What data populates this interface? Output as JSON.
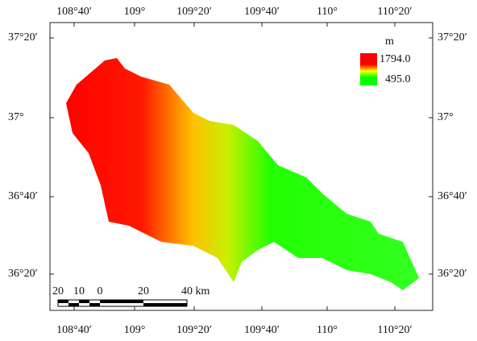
{
  "map": {
    "top_labels": [
      "108°40′",
      "109°",
      "109°20′",
      "109°40′",
      "110°",
      "110°20′"
    ],
    "bottom_labels": [
      "108°40′",
      "109°",
      "109°20′",
      "109°40′",
      "110°",
      "110°20′"
    ],
    "left_labels": [
      "37°20′",
      "37°",
      "36°40′",
      "36°20′"
    ],
    "right_labels": [
      "37°20′",
      "37°",
      "36°40′",
      "36°20′"
    ],
    "legend": {
      "unit": "m",
      "max": "1794.0",
      "min": "495.0"
    },
    "scale_bar": {
      "labels": [
        "20",
        "10",
        "0",
        "20",
        "40 km"
      ]
    }
  }
}
